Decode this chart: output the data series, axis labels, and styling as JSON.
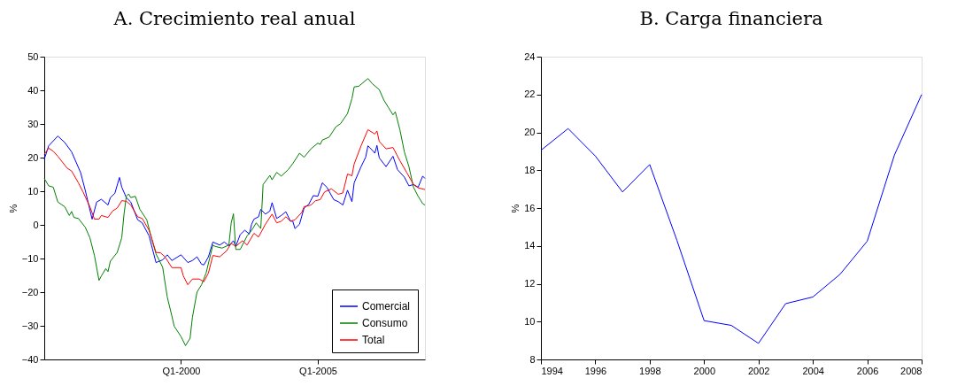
{
  "chart_data": [
    {
      "type": "line",
      "title": "A. Crecimiento real anual",
      "ylabel": "%",
      "xlim": [
        "1995-01",
        "2008-12"
      ],
      "xticks": [
        {
          "value": "2000-01",
          "label": "Q1-2000"
        },
        {
          "value": "2005-01",
          "label": "Q1-2005"
        }
      ],
      "ylim": [
        -40,
        50
      ],
      "yticks": [
        -40,
        -30,
        -20,
        -10,
        0,
        10,
        20,
        30,
        40,
        50
      ],
      "grid": false,
      "legend": "bottom right",
      "line_style": "solid",
      "marker": "none",
      "series": [
        {
          "name": "Comercial",
          "color": "#0000ff",
          "x": [
            "1995-01",
            "1995-03",
            "1995-07",
            "1995-10",
            "1996-01",
            "1996-05",
            "1996-07",
            "1996-10",
            "1996-12",
            "1997-02",
            "1997-05",
            "1997-06",
            "1997-08",
            "1997-10",
            "1997-11",
            "1998-01",
            "1998-03",
            "1998-06",
            "1998-08",
            "1998-11",
            "1999-02",
            "1999-05",
            "1999-07",
            "1999-09",
            "2000-01",
            "2000-04",
            "2000-06",
            "2000-08",
            "2000-10",
            "2000-11",
            "2001-01",
            "2001-03",
            "2001-06",
            "2001-08",
            "2001-10",
            "2001-12",
            "2002-01",
            "2002-03",
            "2002-05",
            "2002-07",
            "2002-08",
            "2002-09",
            "2002-11",
            "2002-12",
            "2003-02",
            "2003-04",
            "2003-05",
            "2003-07",
            "2003-09",
            "2003-11",
            "2004-01",
            "2004-02",
            "2004-03",
            "2004-05",
            "2004-07",
            "2004-09",
            "2004-11",
            "2005-01",
            "2005-03",
            "2005-05",
            "2005-08",
            "2005-10",
            "2005-12",
            "2006-02",
            "2006-04",
            "2006-05",
            "2006-08",
            "2006-10",
            "2006-11",
            "2007-01",
            "2007-02",
            "2007-03",
            "2007-04",
            "2007-07",
            "2007-10",
            "2007-12",
            "2008-03",
            "2008-05",
            "2008-07",
            "2008-09",
            "2008-11",
            "2008-12"
          ],
          "values": [
            19.5,
            23.5,
            26.4,
            24.5,
            21.7,
            15.5,
            10.3,
            1.7,
            6.8,
            7.6,
            5.9,
            8.1,
            9.4,
            14.1,
            11.2,
            8.1,
            6.8,
            1.5,
            0.6,
            -3.3,
            -11.2,
            -10.4,
            -8.9,
            -10.6,
            -8.9,
            -11.2,
            -10.6,
            -9.5,
            -11.7,
            -11.9,
            -9.5,
            -5.1,
            -6.0,
            -5.1,
            -6.2,
            -4.7,
            -6.4,
            -2.9,
            -1.6,
            -2.7,
            0.2,
            1.7,
            2.4,
            4.6,
            3.2,
            4.1,
            6.6,
            1.9,
            2.8,
            3.9,
            1.1,
            1.1,
            -1.1,
            0.2,
            5.0,
            6.1,
            8.7,
            8.5,
            12.5,
            11.2,
            7.5,
            6.9,
            5.9,
            10.3,
            6.9,
            12.5,
            17.3,
            20.1,
            23.5,
            22.1,
            21.3,
            23.6,
            19.9,
            17.3,
            20.4,
            16.4,
            14.2,
            11.6,
            12.0,
            11.2,
            14.5,
            13.8
          ]
        },
        {
          "name": "Consumo",
          "color": "#008000",
          "x": [
            "1995-01",
            "1995-03",
            "1995-05",
            "1995-07",
            "1995-10",
            "1995-12",
            "1996-01",
            "1996-02",
            "1996-04",
            "1996-07",
            "1996-09",
            "1996-11",
            "1997-01",
            "1997-02",
            "1997-04",
            "1997-05",
            "1997-06",
            "1997-09",
            "1997-11",
            "1997-12",
            "1998-01",
            "1998-02",
            "1998-03",
            "1998-05",
            "1998-07",
            "1998-10",
            "1998-12",
            "1999-02",
            "1999-05",
            "1999-07",
            "1999-09",
            "1999-10",
            "2000-01",
            "2000-03",
            "2000-05",
            "2000-06",
            "2000-08",
            "2000-10",
            "2000-12",
            "2001-03",
            "2001-04",
            "2001-07",
            "2001-10",
            "2001-11",
            "2001-12",
            "2002-01",
            "2002-03",
            "2002-06",
            "2002-08",
            "2002-10",
            "2002-12",
            "2003-01",
            "2003-04",
            "2003-05",
            "2003-07",
            "2003-09",
            "2003-12",
            "2004-02",
            "2004-05",
            "2004-07",
            "2004-10",
            "2005-01",
            "2005-02",
            "2005-03",
            "2005-06",
            "2005-09",
            "2005-11",
            "2006-02",
            "2006-04",
            "2006-05",
            "2006-07",
            "2006-11",
            "2007-01",
            "2007-04",
            "2007-06",
            "2007-08",
            "2007-10",
            "2007-11",
            "2008-01",
            "2008-03",
            "2008-05",
            "2008-07",
            "2008-09",
            "2008-11",
            "2008-12"
          ],
          "values": [
            13.8,
            11.6,
            11.2,
            6.8,
            5.4,
            2.8,
            4.0,
            2.2,
            1.9,
            -0.7,
            -3.8,
            -9.1,
            -16.5,
            -15.2,
            -13.0,
            -13.9,
            -10.8,
            -8.2,
            -3.8,
            3.2,
            8.5,
            9.2,
            8.1,
            8.5,
            4.6,
            1.5,
            -3.8,
            -8.6,
            -12.6,
            -21.4,
            -27.1,
            -30.1,
            -33.2,
            -35.9,
            -33.7,
            -27.5,
            -20.0,
            -17.8,
            -14.3,
            -6.0,
            -6.4,
            -6.9,
            -6.0,
            0.6,
            3.3,
            -7.3,
            -7.3,
            -3.3,
            -1.6,
            0.6,
            -1.1,
            12.0,
            14.7,
            13.4,
            15.6,
            14.5,
            16.4,
            18.2,
            21.3,
            20.1,
            22.6,
            24.3,
            23.9,
            25.2,
            26.1,
            29.2,
            30.1,
            33.1,
            37.5,
            41.0,
            41.2,
            43.5,
            41.9,
            40.2,
            37.1,
            34.9,
            32.7,
            33.6,
            28.3,
            21.7,
            17.3,
            11.2,
            8.5,
            6.3,
            5.9
          ]
        },
        {
          "name": "Total",
          "color": "#ff0000",
          "x": [
            "1995-01",
            "1995-03",
            "1995-05",
            "1995-07",
            "1995-11",
            "1996-01",
            "1996-04",
            "1996-06",
            "1996-09",
            "1996-11",
            "1997-01",
            "1997-02",
            "1997-05",
            "1997-07",
            "1997-09",
            "1997-11",
            "1998-01",
            "1998-03",
            "1998-06",
            "1998-08",
            "1998-11",
            "1999-02",
            "1999-04",
            "1999-06",
            "1999-09",
            "2000-01",
            "2000-02",
            "2000-04",
            "2000-06",
            "2000-09",
            "2000-11",
            "2001-01",
            "2001-03",
            "2001-06",
            "2001-09",
            "2001-11",
            "2002-01",
            "2002-04",
            "2002-06",
            "2002-09",
            "2002-11",
            "2003-02",
            "2003-05",
            "2003-07",
            "2003-09",
            "2003-11",
            "2004-01",
            "2004-03",
            "2004-06",
            "2004-07",
            "2004-10",
            "2004-12",
            "2005-02",
            "2005-04",
            "2005-07",
            "2005-10",
            "2005-12",
            "2006-02",
            "2006-04",
            "2006-05",
            "2006-08",
            "2006-11",
            "2007-02",
            "2007-03",
            "2007-04",
            "2007-07",
            "2007-10",
            "2008-01",
            "2008-04",
            "2008-07",
            "2008-09",
            "2008-12"
          ],
          "values": [
            21.0,
            22.8,
            21.9,
            20.4,
            16.9,
            16.0,
            12.5,
            9.8,
            5.4,
            1.7,
            1.7,
            2.8,
            2.2,
            4.1,
            5.0,
            7.2,
            7.0,
            5.9,
            2.4,
            1.9,
            -1.6,
            -8.2,
            -8.3,
            -9.5,
            -12.7,
            -12.7,
            -15.2,
            -17.8,
            -16.1,
            -16.1,
            -16.9,
            -14.3,
            -9.1,
            -9.5,
            -7.7,
            -5.5,
            -6.4,
            -4.7,
            -6.0,
            -2.5,
            -3.6,
            0.2,
            3.2,
            0.6,
            1.1,
            2.4,
            1.1,
            1.5,
            3.7,
            5.4,
            5.9,
            7.2,
            7.5,
            9.8,
            10.7,
            9.1,
            9.5,
            15.1,
            14.6,
            18.1,
            23.5,
            28.3,
            27.0,
            27.9,
            24.8,
            22.6,
            23.0,
            19.1,
            15.6,
            12.0,
            11.0,
            10.5
          ]
        }
      ]
    },
    {
      "type": "line",
      "title": "B. Carga financiera",
      "ylabel": "%",
      "xlim": [
        1994,
        2008
      ],
      "xticks": [
        1994,
        1996,
        1998,
        2000,
        2002,
        2004,
        2006,
        2008
      ],
      "ylim": [
        8,
        24
      ],
      "yticks": [
        8,
        10,
        12,
        14,
        16,
        18,
        20,
        22,
        24
      ],
      "grid": false,
      "legend": false,
      "line_style": "solid",
      "marker": "none",
      "series": [
        {
          "color": "#0000ff",
          "x": [
            1994,
            1995,
            1996,
            1997,
            1998,
            1999,
            2000,
            2001,
            2002,
            2003,
            2004,
            2005,
            2006,
            2007,
            2008
          ],
          "values": [
            19.05,
            20.2,
            18.75,
            16.85,
            18.3,
            14.3,
            10.05,
            9.8,
            8.85,
            10.95,
            11.3,
            12.5,
            14.25,
            18.8,
            22.0
          ]
        }
      ]
    }
  ]
}
